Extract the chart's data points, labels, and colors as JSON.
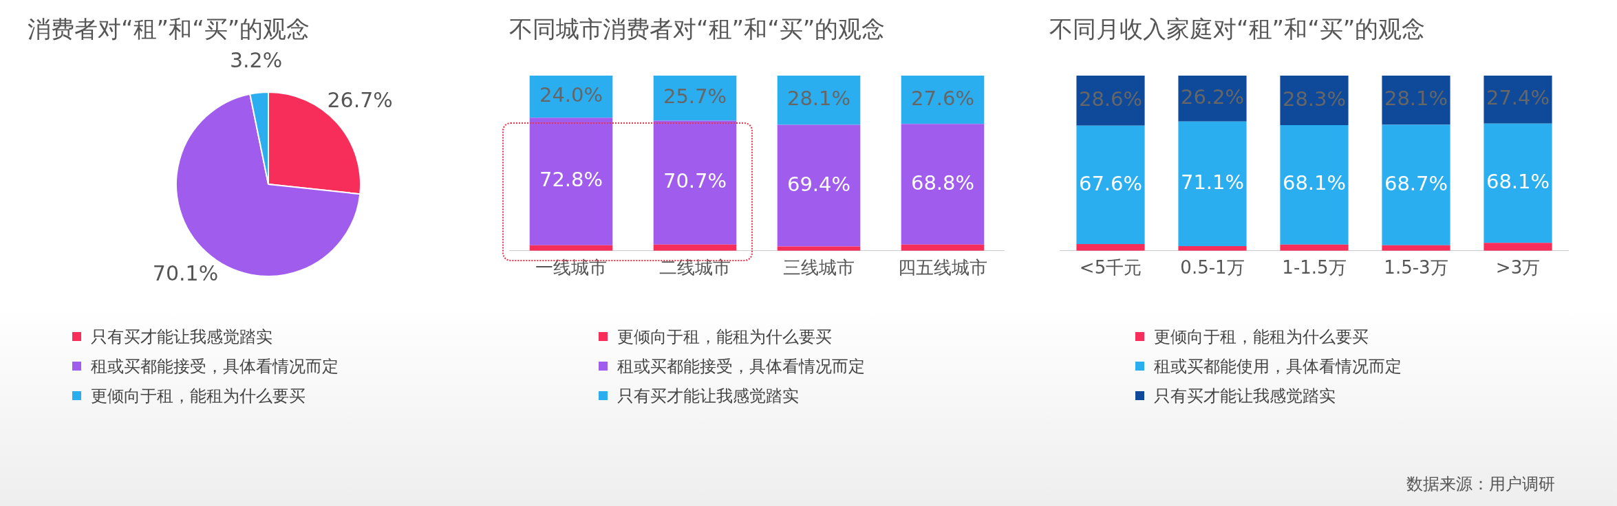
{
  "chart_data": [
    {
      "type": "pie",
      "title": "消费者对“租”和“买”的观念",
      "categories": [
        "只有买才能让我感觉踏实",
        "租或买都能接受，具体看情况而定",
        "更倾向于租，能租为什么要买"
      ],
      "values": [
        26.7,
        70.1,
        3.2
      ],
      "colors": [
        "#f72d5a",
        "#a05ced",
        "#2aaef0"
      ],
      "value_labels": [
        "26.7%",
        "70.1%",
        "3.2%"
      ],
      "legend": "bottom"
    },
    {
      "type": "bar",
      "title": "不同城市消费者对“租”和“买”的观念",
      "categories": [
        "一线城市",
        "二线城市",
        "三线城市",
        "四五线城市"
      ],
      "stacked": true,
      "legend": "bottom",
      "series": [
        {
          "name": "更倾向于租，能租为什么要买",
          "color": "#f72d5a",
          "values": [
            3.2,
            3.6,
            2.5,
            3.6
          ],
          "value_labels": [
            null,
            null,
            null,
            null
          ]
        },
        {
          "name": "租或买都能接受，具体看情况而定",
          "color": "#a05ced",
          "values": [
            72.8,
            70.7,
            69.4,
            68.8
          ],
          "value_labels": [
            "72.8%",
            "70.7%",
            "69.4%",
            "68.8%"
          ]
        },
        {
          "name": "只有买才能让我感觉踏实",
          "color": "#2aaef0",
          "values": [
            24.0,
            25.7,
            28.1,
            27.6
          ],
          "value_labels": [
            "24.0%",
            "25.7%",
            "28.1%",
            "27.6%"
          ]
        }
      ]
    },
    {
      "type": "bar",
      "title": "不同月收入家庭对“租”和“买”的观念",
      "categories": [
        "<5千元",
        "0.5-1万",
        "1-1.5万",
        "1.5-3万",
        ">3万"
      ],
      "stacked": true,
      "legend": "bottom",
      "annotations": [
        "数据来源：用户调研"
      ],
      "series": [
        {
          "name": "更倾向于租，能租为什么要买",
          "color": "#f72d5a",
          "values": [
            3.8,
            2.7,
            3.6,
            3.2,
            4.5
          ],
          "value_labels": [
            null,
            null,
            null,
            null,
            null
          ]
        },
        {
          "name": "租或买都能使用，具体看情况而定",
          "color": "#2aaef0",
          "values": [
            67.6,
            71.1,
            68.1,
            68.7,
            68.1
          ],
          "value_labels": [
            "67.6%",
            "71.1%",
            "68.1%",
            "68.7%",
            "68.1%"
          ]
        },
        {
          "name": "只有买才能让我感觉踏实",
          "color": "#0f4a9a",
          "values": [
            28.6,
            26.2,
            28.3,
            28.1,
            27.4
          ],
          "value_labels": [
            "28.6%",
            "26.2%",
            "28.3%",
            "28.1%",
            "27.4%"
          ]
        }
      ]
    }
  ]
}
